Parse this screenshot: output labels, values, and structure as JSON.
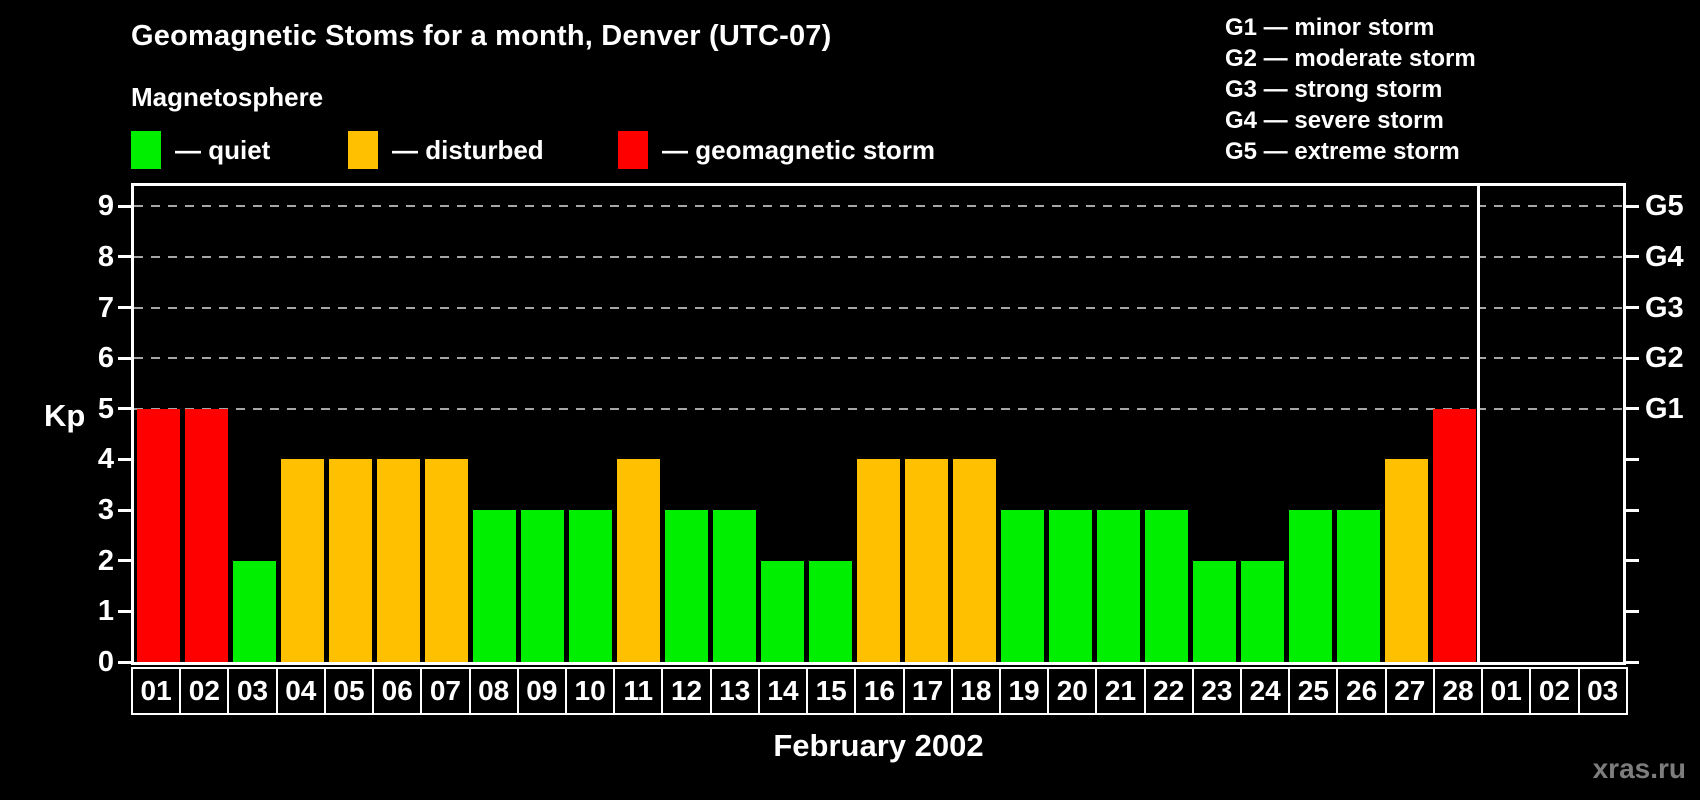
{
  "title": "Geomagnetic Stoms for a month, Denver (UTC-07)",
  "subtitle": "Magnetosphere",
  "legend": {
    "items": [
      {
        "name": "quiet",
        "label": "— quiet",
        "color": "#00EE00"
      },
      {
        "name": "disturbed",
        "label": "— disturbed",
        "color": "#FFC000"
      },
      {
        "name": "storm",
        "label": "— geomagnetic storm",
        "color": "#FF0000"
      }
    ]
  },
  "storm_scale_legend": [
    "G1 — minor storm",
    "G2 — moderate storm",
    "G3 — strong storm",
    "G4 — severe storm",
    "G5 — extreme storm"
  ],
  "axes": {
    "y_label": "Kp",
    "y_ticks": [
      "0",
      "1",
      "2",
      "3",
      "4",
      "5",
      "6",
      "7",
      "8",
      "9"
    ],
    "right_labels": [
      {
        "kp": 5,
        "label": "G1"
      },
      {
        "kp": 6,
        "label": "G2"
      },
      {
        "kp": 7,
        "label": "G3"
      },
      {
        "kp": 8,
        "label": "G4"
      },
      {
        "kp": 9,
        "label": "G5"
      }
    ],
    "x_axis_title": "February 2002"
  },
  "watermark": "xras.ru",
  "chart_data": {
    "type": "bar",
    "title": "Geomagnetic Stoms for a month, Denver (UTC-07)",
    "xlabel": "February 2002",
    "ylabel": "Kp",
    "ylim": [
      0,
      9.4
    ],
    "grid": "dashed horizontal lines at Kp 5-9 only",
    "grid_levels": [
      5,
      6,
      7,
      8,
      9
    ],
    "legend_position": "top-left",
    "categories": [
      "01",
      "02",
      "03",
      "04",
      "05",
      "06",
      "07",
      "08",
      "09",
      "10",
      "11",
      "12",
      "13",
      "14",
      "15",
      "16",
      "17",
      "18",
      "19",
      "20",
      "21",
      "22",
      "23",
      "24",
      "25",
      "26",
      "27",
      "28",
      "01",
      "02",
      "03"
    ],
    "values": [
      5,
      5,
      2,
      4,
      4,
      4,
      4,
      3,
      3,
      3,
      4,
      3,
      3,
      2,
      2,
      4,
      4,
      4,
      3,
      3,
      3,
      3,
      2,
      2,
      3,
      3,
      4,
      5,
      null,
      null,
      null
    ],
    "status": [
      "storm",
      "storm",
      "quiet",
      "disturbed",
      "disturbed",
      "disturbed",
      "disturbed",
      "quiet",
      "quiet",
      "quiet",
      "disturbed",
      "quiet",
      "quiet",
      "quiet",
      "quiet",
      "disturbed",
      "disturbed",
      "disturbed",
      "quiet",
      "quiet",
      "quiet",
      "quiet",
      "quiet",
      "quiet",
      "quiet",
      "quiet",
      "disturbed",
      "storm",
      null,
      null,
      null
    ],
    "month_boundary_slot": 28
  }
}
